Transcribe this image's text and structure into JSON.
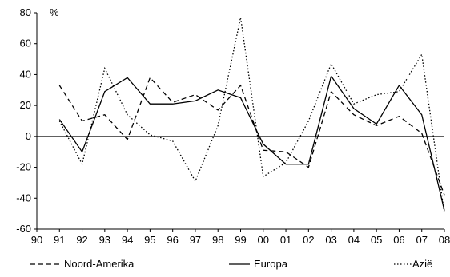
{
  "chart_data": {
    "type": "line",
    "ylabel": "%",
    "ylim": [
      -60,
      80
    ],
    "yticks": [
      80,
      60,
      40,
      20,
      0,
      -20,
      -40,
      -60
    ],
    "categories": [
      "90",
      "91",
      "92",
      "93",
      "94",
      "95",
      "96",
      "97",
      "98",
      "99",
      "00",
      "01",
      "02",
      "03",
      "04",
      "05",
      "06",
      "07",
      "08"
    ],
    "grid": false,
    "zero_line": true,
    "legend_position": "bottom",
    "series": [
      {
        "name": "Noord-Amerika",
        "style": "dashed",
        "color": "#000000",
        "values": [
          null,
          33,
          10,
          14,
          -2,
          38,
          22,
          27,
          17,
          33,
          -9,
          -10,
          -20,
          29,
          14,
          7,
          13,
          2,
          -38
        ]
      },
      {
        "name": "Europa",
        "style": "solid",
        "color": "#000000",
        "values": [
          null,
          11,
          -10,
          29,
          38,
          21,
          21,
          23,
          30,
          25,
          -5,
          -18,
          -18,
          39,
          18,
          8,
          33,
          14,
          -48
        ]
      },
      {
        "name": "Azië",
        "style": "dotted",
        "color": "#000000",
        "values": [
          null,
          10,
          -18,
          44,
          14,
          1,
          -3,
          -29,
          7,
          77,
          -26,
          -17,
          10,
          47,
          21,
          27,
          29,
          53,
          -50
        ]
      }
    ]
  }
}
